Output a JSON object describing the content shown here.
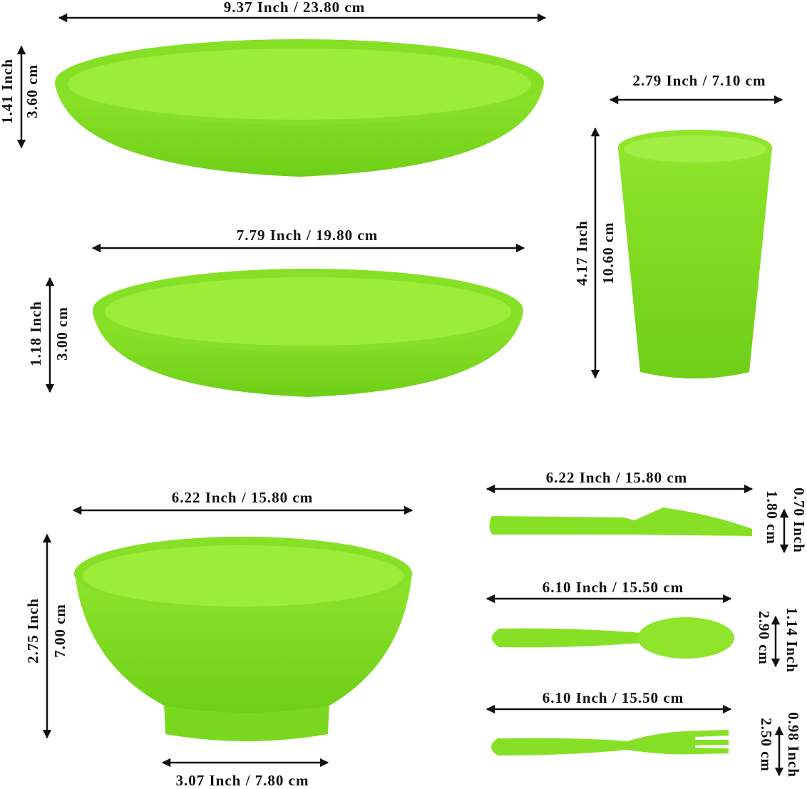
{
  "dinner_plate": {
    "width": "9.37 Inch / 23.80 cm",
    "height_inch": "1.41 Inch",
    "height_cm": "3.60 cm"
  },
  "salad_plate": {
    "width": "7.79 Inch / 19.80 cm",
    "height_inch": "1.18 Inch",
    "height_cm": "3.00 cm"
  },
  "cup": {
    "width": "2.79 Inch / 7.10 cm",
    "height_inch": "4.17 Inch",
    "height_cm": "10.60 cm"
  },
  "bowl": {
    "width": "6.22 Inch / 15.80 cm",
    "height_inch": "2.75 Inch",
    "height_cm": "7.00 cm",
    "base_width": "3.07 Inch / 7.80 cm"
  },
  "knife": {
    "length": "6.22 Inch / 15.80 cm",
    "width_inch": "0.70 Inch",
    "width_cm": "1.80 cm"
  },
  "spoon": {
    "length": "6.10 Inch / 15.50 cm",
    "width_inch": "1.14 Inch",
    "width_cm": "2.90 cm"
  },
  "fork": {
    "length": "6.10 Inch / 15.50 cm",
    "width_inch": "0.98 Inch",
    "width_cm": "2.50 cm"
  }
}
